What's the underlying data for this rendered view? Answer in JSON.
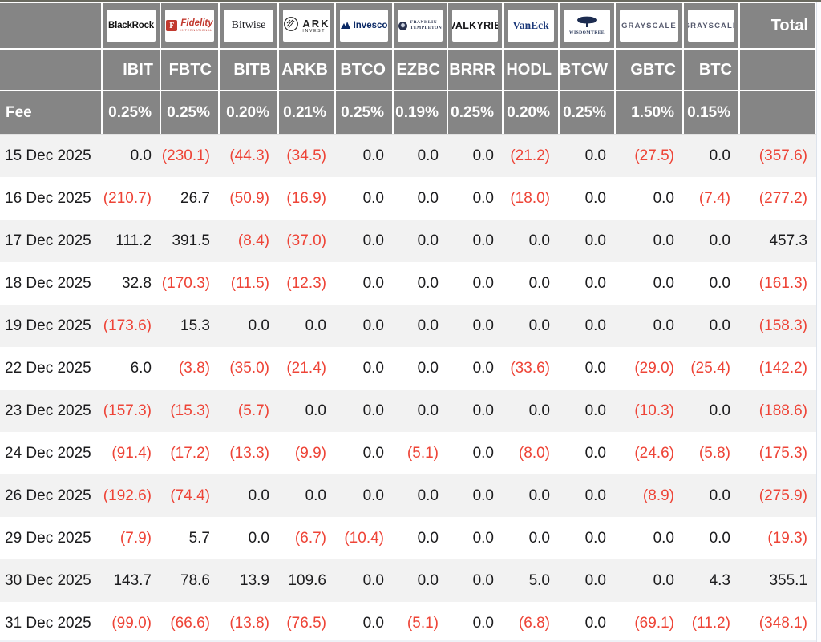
{
  "chart_data": {
    "type": "table",
    "row_label_header": "Fee",
    "total_label": "Total",
    "providers": [
      {
        "id": "blackrock",
        "name": "BlackRock"
      },
      {
        "id": "fidelity",
        "name": "Fidelity",
        "sub": "INTERNATIONAL"
      },
      {
        "id": "bitwise",
        "name": "Bitwise"
      },
      {
        "id": "ark",
        "name": "ARK",
        "sub": "INVEST"
      },
      {
        "id": "invesco",
        "name": "Invesco"
      },
      {
        "id": "franklin",
        "name": "FRANKLIN",
        "sub": "TEMPLETON"
      },
      {
        "id": "valkyrie",
        "name": "VALKYRIE"
      },
      {
        "id": "vaneck",
        "name": "VanEck"
      },
      {
        "id": "wisdomtree",
        "name": "WISDOMTREE"
      },
      {
        "id": "grayscale",
        "name": "GRAYSCALE"
      },
      {
        "id": "grayscale2",
        "name": "GRAYSCALE"
      }
    ],
    "tickers": [
      "IBIT",
      "FBTC",
      "BITB",
      "ARKB",
      "BTCO",
      "EZBC",
      "BRRR",
      "HODL",
      "BTCW",
      "GBTC",
      "BTC"
    ],
    "fees": [
      "0.25%",
      "0.25%",
      "0.20%",
      "0.21%",
      "0.25%",
      "0.19%",
      "0.25%",
      "0.20%",
      "0.25%",
      "1.50%",
      "0.15%"
    ],
    "dates": [
      "15 Dec 2025",
      "16 Dec 2025",
      "17 Dec 2025",
      "18 Dec 2025",
      "19 Dec 2025",
      "22 Dec 2025",
      "23 Dec 2025",
      "24 Dec 2025",
      "26 Dec 2025",
      "29 Dec 2025",
      "30 Dec 2025",
      "31 Dec 2025"
    ],
    "flows": [
      [
        0.0,
        -230.1,
        -44.3,
        -34.5,
        0.0,
        0.0,
        0.0,
        -21.2,
        0.0,
        -27.5,
        0.0
      ],
      [
        -210.7,
        26.7,
        -50.9,
        -16.9,
        0.0,
        0.0,
        0.0,
        -18.0,
        0.0,
        0.0,
        -7.4
      ],
      [
        111.2,
        391.5,
        -8.4,
        -37.0,
        0.0,
        0.0,
        0.0,
        0.0,
        0.0,
        0.0,
        0.0
      ],
      [
        32.8,
        -170.3,
        -11.5,
        -12.3,
        0.0,
        0.0,
        0.0,
        0.0,
        0.0,
        0.0,
        0.0
      ],
      [
        -173.6,
        15.3,
        0.0,
        0.0,
        0.0,
        0.0,
        0.0,
        0.0,
        0.0,
        0.0,
        0.0
      ],
      [
        6.0,
        -3.8,
        -35.0,
        -21.4,
        0.0,
        0.0,
        0.0,
        -33.6,
        0.0,
        -29.0,
        -25.4
      ],
      [
        -157.3,
        -15.3,
        -5.7,
        0.0,
        0.0,
        0.0,
        0.0,
        0.0,
        0.0,
        -10.3,
        0.0
      ],
      [
        -91.4,
        -17.2,
        -13.3,
        -9.9,
        0.0,
        -5.1,
        0.0,
        -8.0,
        0.0,
        -24.6,
        -5.8
      ],
      [
        -192.6,
        -74.4,
        0.0,
        0.0,
        0.0,
        0.0,
        0.0,
        0.0,
        0.0,
        -8.9,
        0.0
      ],
      [
        -7.9,
        5.7,
        0.0,
        -6.7,
        -10.4,
        0.0,
        0.0,
        0.0,
        0.0,
        0.0,
        0.0
      ],
      [
        143.7,
        78.6,
        13.9,
        109.6,
        0.0,
        0.0,
        0.0,
        5.0,
        0.0,
        0.0,
        4.3
      ],
      [
        -99.0,
        -66.6,
        -13.8,
        -76.5,
        0.0,
        -5.1,
        0.0,
        -6.8,
        0.0,
        -69.1,
        -11.2
      ]
    ],
    "totals": [
      -357.6,
      -277.2,
      457.3,
      -161.3,
      -158.3,
      -142.2,
      -188.6,
      -175.3,
      -275.9,
      -19.3,
      355.1,
      -348.1
    ],
    "colors": {
      "header_bg": "#858585",
      "negative": "#ee4437",
      "row_alt": "#f2f2f2",
      "text": "#1c1c1e"
    }
  }
}
